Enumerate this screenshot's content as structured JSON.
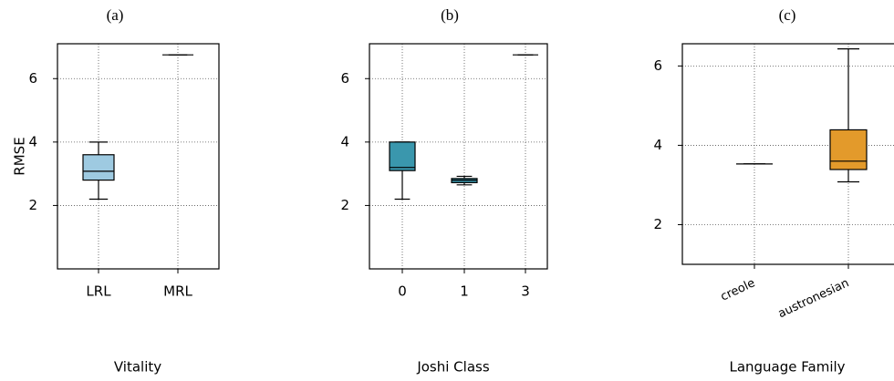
{
  "chart_data": [
    {
      "type": "box",
      "title": "(a)",
      "xlabel": "Vitality",
      "ylabel": "RMSE",
      "categories": [
        "LRL",
        "MRL"
      ],
      "boxes": [
        {
          "min": 2.2,
          "q1": 2.8,
          "median": 3.08,
          "q3": 3.6,
          "max": 4.0
        },
        {
          "min": 6.75,
          "q1": 6.75,
          "median": 6.75,
          "q3": 6.75,
          "max": 6.75
        }
      ],
      "color": "#9ecae1",
      "ylim": [
        0,
        7.1
      ],
      "yticks": [
        2,
        4,
        6
      ],
      "grid": true
    },
    {
      "type": "box",
      "title": "(b)",
      "xlabel": "Joshi Class",
      "categories": [
        "0",
        "1",
        "3"
      ],
      "boxes": [
        {
          "min": 2.2,
          "q1": 3.1,
          "median": 3.2,
          "q3": 4.0,
          "max": 4.0
        },
        {
          "min": 2.65,
          "q1": 2.72,
          "median": 2.8,
          "q3": 2.85,
          "max": 2.92
        },
        {
          "min": 6.75,
          "q1": 6.75,
          "median": 6.75,
          "q3": 6.75,
          "max": 6.75
        }
      ],
      "color": "#3a97ad",
      "ylim": [
        0,
        7.1
      ],
      "yticks": [
        2,
        4,
        6
      ],
      "grid": true
    },
    {
      "type": "box",
      "title": "(c)",
      "xlabel": "Language Family",
      "categories": [
        "creole",
        "austronesian"
      ],
      "boxes": [
        {
          "min": 3.53,
          "q1": 3.53,
          "median": 3.53,
          "q3": 3.53,
          "max": 3.53
        },
        {
          "min": 3.08,
          "q1": 3.39,
          "median": 3.6,
          "q3": 4.39,
          "max": 6.43
        }
      ],
      "color": "#e39a2b",
      "ylim": [
        1,
        6.56
      ],
      "yticks": [
        2,
        4,
        6
      ],
      "grid": true
    }
  ]
}
